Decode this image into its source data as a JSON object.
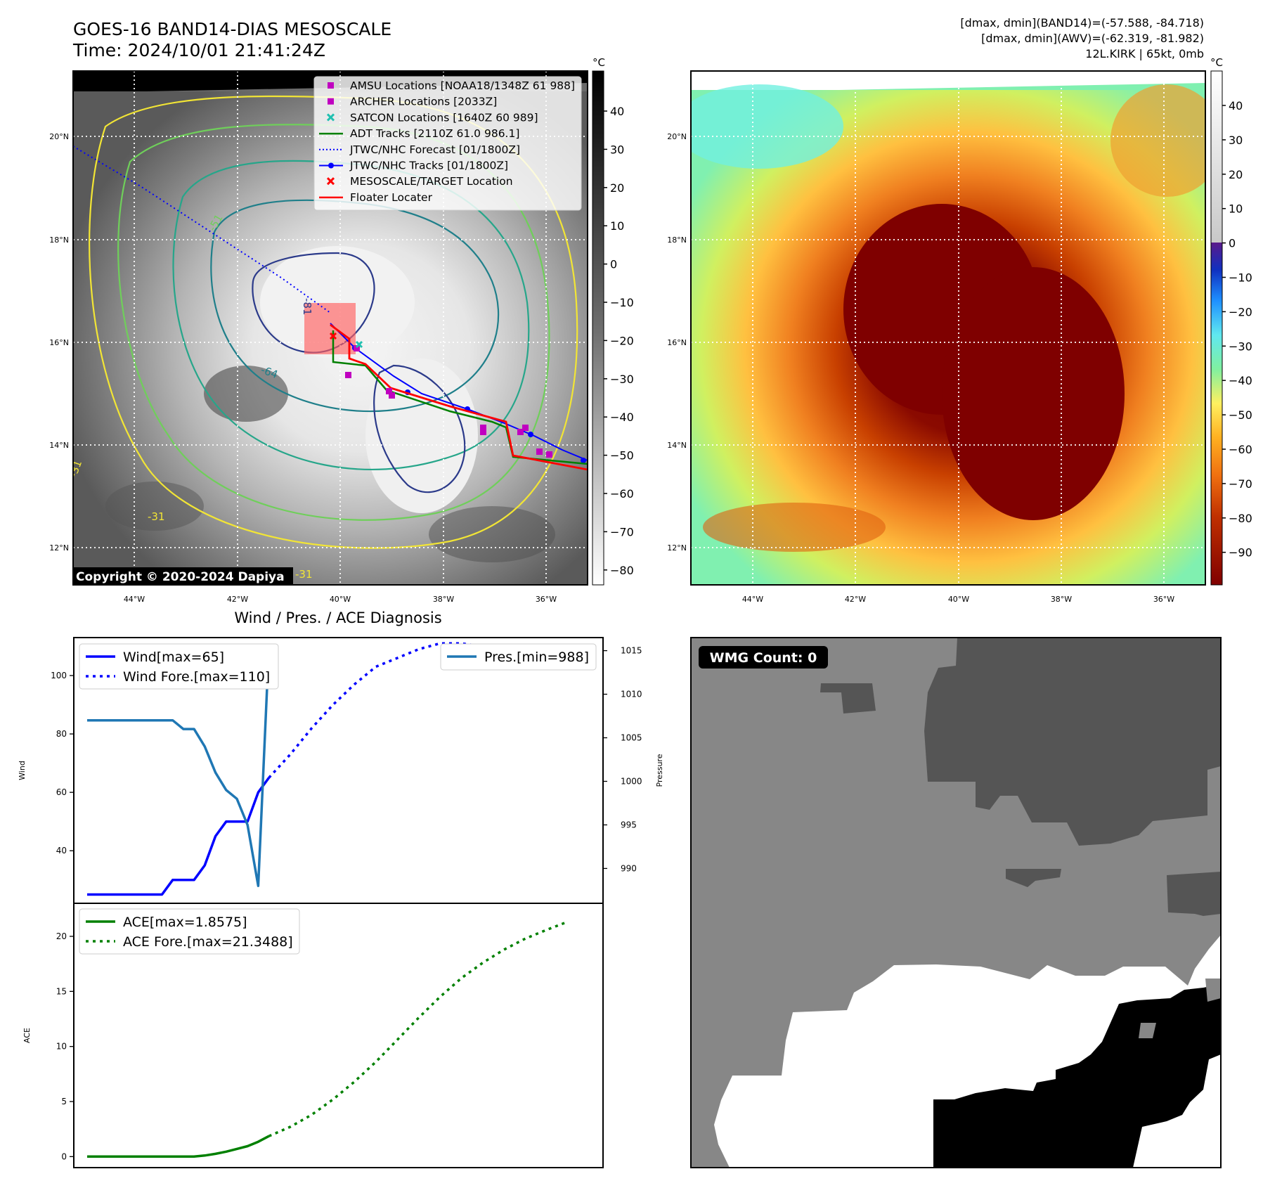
{
  "header": {
    "title": "GOES-16 BAND14-DIAS MESOSCALE",
    "time": "Time: 2024/10/01 21:41:24Z",
    "info1": "[dmax, dmin](BAND14)=(-57.588, -84.718)",
    "info2": "[dmax, dmin](AWV)=(-62.319, -81.982)",
    "info3": "12L.KIRK | 65kt, 0mb"
  },
  "map": {
    "copyright": "Copyright © 2020-2024 Dapiya",
    "lon_ticks": [
      "44°W",
      "42°W",
      "40°W",
      "38°W",
      "36°W"
    ],
    "lat_ticks": [
      "20°N",
      "18°N",
      "16°N",
      "14°N",
      "12°N"
    ],
    "legend": [
      {
        "label": "AMSU Locations [NOAA18/1348Z 61 988]",
        "color": "#c000c0",
        "marker": "square"
      },
      {
        "label": "ARCHER Locations [2033Z]",
        "color": "#c000c0",
        "marker": "square"
      },
      {
        "label": "SATCON Locations [1640Z 60 989]",
        "color": "#20c0b0",
        "marker": "x"
      },
      {
        "label": "ADT Tracks [2110Z 61.0 986.1]",
        "color": "#008000",
        "marker": "line"
      },
      {
        "label": "JTWC/NHC Forecast [01/1800Z]",
        "color": "#0000ff",
        "marker": "dotted"
      },
      {
        "label": "JTWC/NHC Tracks [01/1800Z]",
        "color": "#0000ff",
        "marker": "line-dot"
      },
      {
        "label": "MESOSCALE/TARGET Location",
        "color": "#ff0000",
        "marker": "x"
      },
      {
        "label": "Floater Locater",
        "color": "#ff0000",
        "marker": "line"
      }
    ],
    "contour_labels": [
      "-64",
      "-31",
      "-81",
      "-51",
      "-31",
      "-31"
    ]
  },
  "colorbars": {
    "unit": "°C",
    "ir_ticks": [
      "40",
      "30",
      "20",
      "10",
      "0",
      "−10",
      "−20",
      "−30",
      "−40",
      "−50",
      "−60",
      "−70",
      "−80"
    ],
    "awv_ticks": [
      "40",
      "30",
      "20",
      "10",
      "0",
      "−10",
      "−20",
      "−30",
      "−40",
      "−50",
      "−60",
      "−70",
      "−80",
      "−90"
    ]
  },
  "diagnosis": {
    "title": "Wind / Pres. / ACE Diagnosis",
    "wind_axis": "Wind",
    "pres_axis": "Pressure",
    "ace_axis": "ACE",
    "wind_ticks": [
      "100",
      "80",
      "60",
      "40"
    ],
    "pres_ticks": [
      "1015",
      "1010",
      "1005",
      "1000",
      "995",
      "990"
    ],
    "ace_ticks": [
      "20",
      "15",
      "10",
      "5",
      "0"
    ],
    "legend_wind": "Wind[max=65]",
    "legend_wind_fore": "Wind Fore.[max=110]",
    "legend_pres": "Pres.[min=988]",
    "legend_ace": "ACE[max=1.8575]",
    "legend_ace_fore": "ACE Fore.[max=21.3488]"
  },
  "wmg": {
    "label": "WMG Count: 0"
  },
  "chart_data": [
    {
      "type": "line",
      "title": "Wind / Pres. / ACE Diagnosis",
      "ylabel": "Wind",
      "y2label": "Pressure",
      "ylim": [
        22,
        113
      ],
      "y2lim": [
        986,
        1016.5
      ],
      "series": [
        {
          "name": "Wind[max=65]",
          "color": "#0000ff",
          "style": "solid",
          "axis": "left",
          "x": [
            0,
            1,
            2,
            3,
            4,
            5,
            6,
            7,
            8,
            9,
            10,
            11,
            12,
            13,
            14,
            15,
            16,
            17
          ],
          "values": [
            25,
            25,
            25,
            25,
            25,
            25,
            25,
            25,
            30,
            30,
            30,
            35,
            45,
            50,
            50,
            50,
            60,
            65
          ]
        },
        {
          "name": "Wind Fore.[max=110]",
          "color": "#0000ff",
          "style": "dotted",
          "axis": "left",
          "x": [
            17,
            19,
            21,
            23,
            25,
            27,
            29,
            31,
            33,
            35,
            37,
            39,
            41,
            43,
            45
          ],
          "values": [
            65,
            73,
            82,
            90,
            97,
            103,
            106,
            109,
            111,
            111,
            110,
            109,
            108,
            108,
            102
          ]
        },
        {
          "name": "Pres.[min=988]",
          "color": "#1f77b4",
          "style": "solid",
          "axis": "right",
          "x": [
            0,
            1,
            2,
            3,
            4,
            5,
            6,
            7,
            8,
            9,
            10,
            11,
            12,
            13,
            14,
            15,
            16,
            17
          ],
          "values": [
            1007,
            1007,
            1007,
            1007,
            1007,
            1007,
            1007,
            1007,
            1007,
            1006,
            1006,
            1004,
            1001,
            999,
            998,
            995,
            988,
            1015.5
          ]
        }
      ]
    },
    {
      "type": "line",
      "ylabel": "ACE",
      "ylim": [
        -1,
        23
      ],
      "series": [
        {
          "name": "ACE[max=1.8575]",
          "color": "#008000",
          "style": "solid",
          "x": [
            0,
            1,
            2,
            3,
            4,
            5,
            6,
            7,
            8,
            9,
            10,
            11,
            12,
            13,
            14,
            15,
            16,
            17
          ],
          "values": [
            0,
            0,
            0,
            0,
            0,
            0,
            0,
            0,
            0,
            0,
            0,
            0.1,
            0.25,
            0.45,
            0.7,
            0.95,
            1.35,
            1.8575
          ]
        },
        {
          "name": "ACE Fore.[max=21.3488]",
          "color": "#008000",
          "style": "dotted",
          "x": [
            17,
            19,
            21,
            23,
            25,
            27,
            29,
            31,
            33,
            35,
            37,
            39,
            41,
            43,
            45
          ],
          "values": [
            1.8575,
            2.7,
            3.8,
            5.2,
            6.8,
            8.6,
            10.6,
            12.6,
            14.5,
            16.2,
            17.6,
            18.8,
            19.8,
            20.6,
            21.3488
          ]
        }
      ]
    }
  ]
}
